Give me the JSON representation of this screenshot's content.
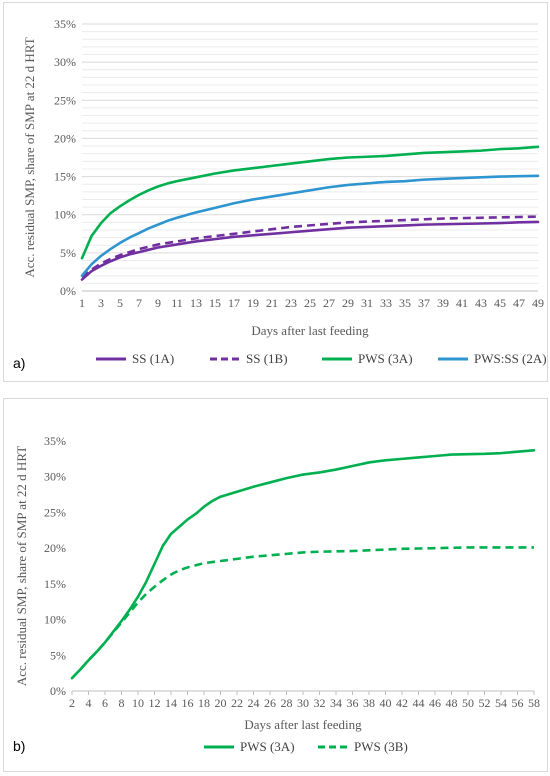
{
  "chart_data": [
    {
      "type": "line",
      "panel_label": "a)",
      "ylabel": "Acc. residual SMP, share of SMP at 22 d HRT",
      "xlabel": "Days after last feeding",
      "ylim": [
        0,
        35
      ],
      "yticks": [
        0,
        5,
        10,
        15,
        20,
        25,
        30,
        35
      ],
      "ytick_labels": [
        "0%",
        "5%",
        "10%",
        "15%",
        "20%",
        "25%",
        "30%",
        "35%"
      ],
      "xlim": [
        1,
        49
      ],
      "xticks": [
        1,
        3,
        5,
        7,
        9,
        11,
        13,
        15,
        17,
        19,
        21,
        23,
        25,
        27,
        29,
        31,
        33,
        35,
        37,
        39,
        41,
        43,
        45,
        47,
        49
      ],
      "xtick_labels": [
        "1",
        "3",
        "5",
        "7",
        "9",
        "11",
        "13",
        "15",
        "17",
        "19",
        "21",
        "23",
        "25",
        "27",
        "29",
        "31",
        "33",
        "35",
        "37",
        "39",
        "41",
        "43",
        "45",
        "47",
        "49"
      ],
      "grid": true,
      "legend_position": "bottom",
      "series": [
        {
          "name": "SS (1A)",
          "color": "#7030a0",
          "dash": "solid",
          "points": [
            [
              1,
              1.5
            ],
            [
              2,
              2.6
            ],
            [
              3,
              3.3
            ],
            [
              4,
              3.9
            ],
            [
              5,
              4.4
            ],
            [
              6,
              4.8
            ],
            [
              7,
              5.1
            ],
            [
              8,
              5.4
            ],
            [
              9,
              5.7
            ],
            [
              10,
              5.9
            ],
            [
              11,
              6.1
            ],
            [
              13,
              6.5
            ],
            [
              15,
              6.8
            ],
            [
              17,
              7.1
            ],
            [
              19,
              7.3
            ],
            [
              21,
              7.5
            ],
            [
              23,
              7.7
            ],
            [
              25,
              7.9
            ],
            [
              27,
              8.1
            ],
            [
              29,
              8.3
            ],
            [
              31,
              8.4
            ],
            [
              33,
              8.5
            ],
            [
              35,
              8.6
            ],
            [
              37,
              8.7
            ],
            [
              39,
              8.75
            ],
            [
              41,
              8.8
            ],
            [
              43,
              8.85
            ],
            [
              45,
              8.9
            ],
            [
              47,
              9.0
            ],
            [
              49,
              9.05
            ]
          ]
        },
        {
          "name": "SS (1B)",
          "color": "#7030a0",
          "dash": "dashed",
          "points": [
            [
              1,
              1.8
            ],
            [
              2,
              2.8
            ],
            [
              3,
              3.6
            ],
            [
              4,
              4.2
            ],
            [
              5,
              4.7
            ],
            [
              6,
              5.1
            ],
            [
              7,
              5.5
            ],
            [
              8,
              5.8
            ],
            [
              9,
              6.1
            ],
            [
              10,
              6.3
            ],
            [
              11,
              6.5
            ],
            [
              13,
              6.9
            ],
            [
              15,
              7.2
            ],
            [
              17,
              7.5
            ],
            [
              19,
              7.8
            ],
            [
              21,
              8.1
            ],
            [
              23,
              8.4
            ],
            [
              25,
              8.6
            ],
            [
              27,
              8.8
            ],
            [
              29,
              9.0
            ],
            [
              31,
              9.1
            ],
            [
              33,
              9.2
            ],
            [
              35,
              9.3
            ],
            [
              37,
              9.4
            ],
            [
              39,
              9.5
            ],
            [
              41,
              9.55
            ],
            [
              43,
              9.6
            ],
            [
              45,
              9.65
            ],
            [
              47,
              9.7
            ],
            [
              49,
              9.75
            ]
          ]
        },
        {
          "name": "PWS (3A)",
          "color": "#00b050",
          "dash": "solid",
          "points": [
            [
              1,
              4.3
            ],
            [
              2,
              7.2
            ],
            [
              3,
              8.9
            ],
            [
              4,
              10.2
            ],
            [
              5,
              11.1
            ],
            [
              6,
              11.9
            ],
            [
              7,
              12.6
            ],
            [
              8,
              13.2
            ],
            [
              9,
              13.7
            ],
            [
              10,
              14.1
            ],
            [
              11,
              14.4
            ],
            [
              13,
              14.9
            ],
            [
              15,
              15.4
            ],
            [
              17,
              15.8
            ],
            [
              19,
              16.1
            ],
            [
              21,
              16.4
            ],
            [
              23,
              16.7
            ],
            [
              25,
              17.0
            ],
            [
              27,
              17.3
            ],
            [
              29,
              17.5
            ],
            [
              31,
              17.6
            ],
            [
              33,
              17.7
            ],
            [
              35,
              17.9
            ],
            [
              37,
              18.1
            ],
            [
              39,
              18.2
            ],
            [
              41,
              18.3
            ],
            [
              43,
              18.4
            ],
            [
              45,
              18.6
            ],
            [
              47,
              18.7
            ],
            [
              49,
              18.9
            ]
          ]
        },
        {
          "name": "PWS:SS (2A)",
          "color": "#2e95d0",
          "dash": "solid",
          "points": [
            [
              1,
              2.0
            ],
            [
              2,
              3.5
            ],
            [
              3,
              4.6
            ],
            [
              4,
              5.5
            ],
            [
              5,
              6.3
            ],
            [
              6,
              7.0
            ],
            [
              7,
              7.6
            ],
            [
              8,
              8.2
            ],
            [
              9,
              8.7
            ],
            [
              10,
              9.2
            ],
            [
              11,
              9.6
            ],
            [
              13,
              10.3
            ],
            [
              15,
              10.9
            ],
            [
              17,
              11.5
            ],
            [
              19,
              12.0
            ],
            [
              21,
              12.4
            ],
            [
              23,
              12.8
            ],
            [
              25,
              13.2
            ],
            [
              27,
              13.6
            ],
            [
              29,
              13.9
            ],
            [
              31,
              14.1
            ],
            [
              33,
              14.3
            ],
            [
              35,
              14.4
            ],
            [
              37,
              14.6
            ],
            [
              39,
              14.7
            ],
            [
              41,
              14.8
            ],
            [
              43,
              14.9
            ],
            [
              45,
              15.0
            ],
            [
              47,
              15.05
            ],
            [
              49,
              15.1
            ]
          ]
        }
      ]
    },
    {
      "type": "line",
      "panel_label": "b)",
      "ylabel": "Acc. residual SMP, share of SMP at 22 d HRT",
      "xlabel": "Days after last feeding",
      "ylim": [
        0,
        35
      ],
      "yticks": [
        0,
        5,
        10,
        15,
        20,
        25,
        30,
        35
      ],
      "ytick_labels": [
        "0%",
        "5%",
        "10%",
        "15%",
        "20%",
        "25%",
        "30%",
        "35%"
      ],
      "xlim": [
        2,
        58
      ],
      "xticks": [
        2,
        4,
        6,
        8,
        10,
        12,
        14,
        16,
        18,
        20,
        22,
        24,
        26,
        28,
        30,
        32,
        34,
        36,
        38,
        40,
        42,
        44,
        46,
        48,
        50,
        52,
        54,
        56,
        58
      ],
      "xtick_labels": [
        "2",
        "4",
        "6",
        "8",
        "10",
        "12",
        "14",
        "16",
        "18",
        "20",
        "22",
        "24",
        "26",
        "28",
        "30",
        "32",
        "34",
        "36",
        "38",
        "40",
        "42",
        "44",
        "46",
        "48",
        "50",
        "52",
        "54",
        "56",
        "58"
      ],
      "grid": false,
      "legend_position": "bottom",
      "series": [
        {
          "name": "PWS (3A)",
          "color": "#00b050",
          "dash": "solid",
          "points": [
            [
              2,
              1.8
            ],
            [
              3,
              3.0
            ],
            [
              4,
              4.3
            ],
            [
              5,
              5.5
            ],
            [
              6,
              6.8
            ],
            [
              7,
              8.3
            ],
            [
              8,
              9.8
            ],
            [
              9,
              11.4
            ],
            [
              10,
              13.2
            ],
            [
              11,
              15.3
            ],
            [
              12,
              17.8
            ],
            [
              13,
              20.3
            ],
            [
              14,
              22.0
            ],
            [
              15,
              23.0
            ],
            [
              16,
              24.0
            ],
            [
              17,
              24.8
            ],
            [
              18,
              25.8
            ],
            [
              19,
              26.6
            ],
            [
              20,
              27.2
            ],
            [
              22,
              27.9
            ],
            [
              24,
              28.6
            ],
            [
              26,
              29.2
            ],
            [
              28,
              29.8
            ],
            [
              30,
              30.3
            ],
            [
              32,
              30.6
            ],
            [
              34,
              31.0
            ],
            [
              36,
              31.5
            ],
            [
              38,
              32.0
            ],
            [
              40,
              32.3
            ],
            [
              42,
              32.5
            ],
            [
              44,
              32.7
            ],
            [
              46,
              32.9
            ],
            [
              48,
              33.1
            ],
            [
              50,
              33.15
            ],
            [
              52,
              33.2
            ],
            [
              54,
              33.3
            ],
            [
              56,
              33.5
            ],
            [
              58,
              33.7
            ]
          ]
        },
        {
          "name": "PWS (3B)",
          "color": "#00b050",
          "dash": "dashed",
          "points": [
            [
              2,
              1.8
            ],
            [
              3,
              3.0
            ],
            [
              4,
              4.3
            ],
            [
              5,
              5.5
            ],
            [
              6,
              6.8
            ],
            [
              7,
              8.2
            ],
            [
              8,
              9.6
            ],
            [
              9,
              11.0
            ],
            [
              10,
              12.4
            ],
            [
              11,
              13.6
            ],
            [
              12,
              14.6
            ],
            [
              13,
              15.5
            ],
            [
              14,
              16.3
            ],
            [
              15,
              16.9
            ],
            [
              16,
              17.3
            ],
            [
              17,
              17.6
            ],
            [
              18,
              17.9
            ],
            [
              20,
              18.2
            ],
            [
              22,
              18.5
            ],
            [
              24,
              18.8
            ],
            [
              26,
              19.0
            ],
            [
              28,
              19.2
            ],
            [
              30,
              19.4
            ],
            [
              32,
              19.5
            ],
            [
              34,
              19.55
            ],
            [
              36,
              19.6
            ],
            [
              38,
              19.7
            ],
            [
              40,
              19.8
            ],
            [
              42,
              19.9
            ],
            [
              44,
              19.95
            ],
            [
              46,
              20.0
            ],
            [
              48,
              20.05
            ],
            [
              50,
              20.1
            ],
            [
              52,
              20.1
            ],
            [
              54,
              20.1
            ],
            [
              56,
              20.1
            ],
            [
              58,
              20.1
            ]
          ]
        }
      ]
    }
  ]
}
